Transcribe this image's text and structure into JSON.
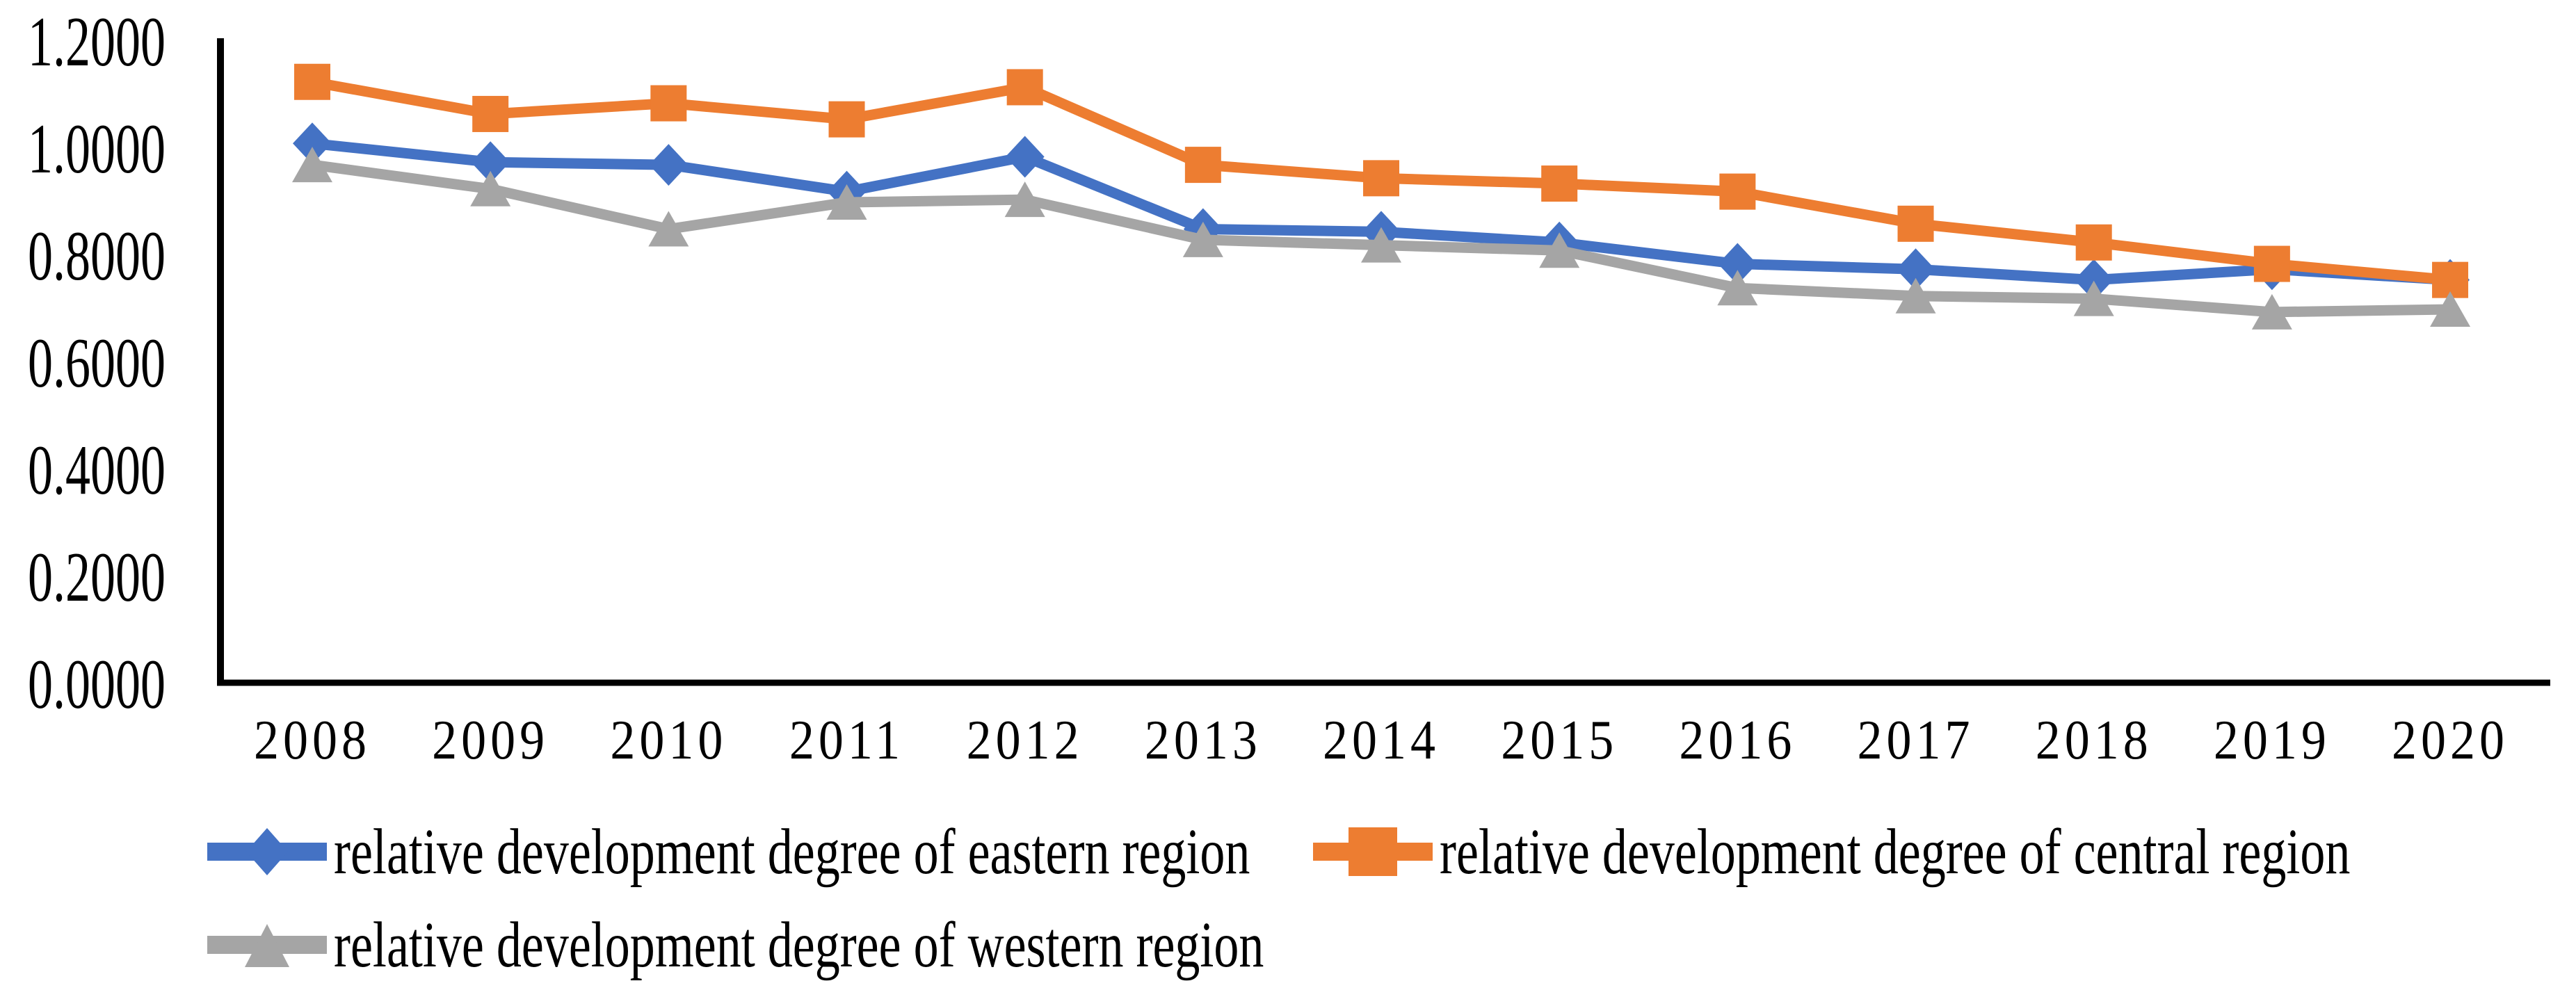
{
  "chart_data": {
    "type": "line",
    "title": "",
    "xlabel": "",
    "ylabel": "",
    "x": [
      "2008",
      "2009",
      "2010",
      "2011",
      "2012",
      "2013",
      "2014",
      "2015",
      "2016",
      "2017",
      "2018",
      "2019",
      "2020"
    ],
    "series": [
      {
        "name": "relative development degree of eastern region",
        "marker": "diamond",
        "color": "#4472C4",
        "values": [
          1.01,
          0.975,
          0.97,
          0.92,
          0.985,
          0.85,
          0.845,
          0.825,
          0.785,
          0.775,
          0.755,
          0.775,
          0.755
        ]
      },
      {
        "name": "relative development degree of central region",
        "marker": "square",
        "color": "#ED7D31",
        "values": [
          1.125,
          1.065,
          1.085,
          1.055,
          1.115,
          0.97,
          0.945,
          0.935,
          0.92,
          0.86,
          0.825,
          0.785,
          0.755
        ]
      },
      {
        "name": "relative development degree of western region",
        "marker": "triangle",
        "color": "#A5A5A5",
        "values": [
          0.97,
          0.925,
          0.85,
          0.9,
          0.905,
          0.83,
          0.82,
          0.81,
          0.74,
          0.725,
          0.72,
          0.695,
          0.7
        ]
      }
    ],
    "ylim": [
      0.0,
      1.2
    ],
    "y_ticks": [
      "1.2000",
      "1.0000",
      "0.8000",
      "0.6000",
      "0.4000",
      "0.2000",
      "0.0000"
    ],
    "y_tick_values": [
      1.2,
      1.0,
      0.8,
      0.6,
      0.4,
      0.2,
      0.0
    ],
    "grid": false,
    "legend_position": "bottom",
    "axis_color": "#000000",
    "background_color": "#FFFFFF"
  }
}
